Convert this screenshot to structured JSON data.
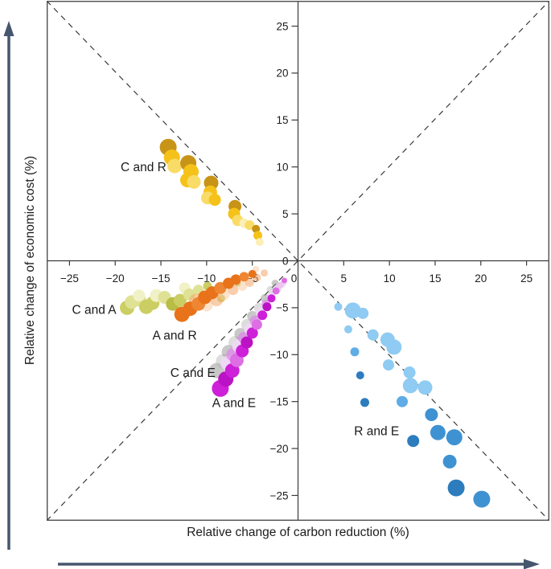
{
  "figure": {
    "x_axis_title": "Relative change of carbon reduction (%)",
    "y_axis_title": "Relative change of economic cost (%)"
  },
  "chart_data": {
    "type": "scatter",
    "title": "",
    "xlabel": "Relative change of carbon reduction (%)",
    "ylabel": "Relative change of economic cost (%)",
    "x_range": [
      -27.5,
      27.5
    ],
    "y_range": [
      -27.7,
      27.7
    ],
    "x_ticks": [
      -25,
      -20,
      -15,
      -10,
      -5,
      0,
      5,
      10,
      15,
      20,
      25
    ],
    "y_ticks": [
      -25,
      -20,
      -15,
      -10,
      -5,
      0,
      5,
      10,
      15,
      20,
      25
    ],
    "grid": false,
    "legend": "none",
    "reference_lines": [
      {
        "name": "diagonal y=x",
        "style": "dashed",
        "color": "#3a3a3a"
      },
      {
        "name": "diagonal y=-x",
        "style": "dashed",
        "color": "#3a3a3a"
      }
    ],
    "frame_color": "#4f4f4f",
    "axis_color": "#3a3a3a",
    "text_color": "#1c1c1c",
    "annotations": [
      {
        "label": "C and R",
        "x": -16.9,
        "y": 10.0
      },
      {
        "label": "C and A",
        "x": -22.3,
        "y": -5.2
      },
      {
        "label": "A and R",
        "x": -13.5,
        "y": -7.9
      },
      {
        "label": "C and E",
        "x": -11.5,
        "y": -11.9
      },
      {
        "label": "A and E",
        "x": -7.0,
        "y": -15.1
      },
      {
        "label": "R and E",
        "x": 8.6,
        "y": -18.1
      }
    ],
    "series": [
      {
        "name": "C and R",
        "palette": [
          "#C79418",
          "#F5C21A",
          "#F9DB67",
          "#FCEFB5"
        ],
        "points": [
          [
            -14.2,
            12.1,
            10.5,
            0
          ],
          [
            -13.8,
            11.0,
            10,
            1
          ],
          [
            -13.5,
            10.1,
            9,
            2
          ],
          [
            -12.0,
            10.4,
            10,
            0
          ],
          [
            -11.7,
            9.5,
            9.5,
            1
          ],
          [
            -12.1,
            8.6,
            9,
            1
          ],
          [
            -11.4,
            8.4,
            8.5,
            2
          ],
          [
            -9.5,
            8.3,
            9,
            0
          ],
          [
            -9.6,
            7.3,
            8.5,
            1
          ],
          [
            -9.9,
            6.7,
            8,
            2
          ],
          [
            -9.1,
            6.5,
            7.5,
            1
          ],
          [
            -6.9,
            5.8,
            8,
            0
          ],
          [
            -7.0,
            5.0,
            7.5,
            1
          ],
          [
            -6.6,
            4.3,
            7,
            2
          ],
          [
            -5.9,
            4.0,
            6,
            3
          ],
          [
            -5.3,
            3.8,
            6,
            2
          ],
          [
            -4.6,
            3.4,
            5,
            0
          ],
          [
            -4.4,
            2.7,
            5.5,
            1
          ],
          [
            -4.2,
            2.0,
            5,
            3
          ]
        ]
      },
      {
        "name": "C and A",
        "palette": [
          "#B9BC45",
          "#CBCE63",
          "#DFE195",
          "#F0F1C6"
        ],
        "points": [
          [
            -18.7,
            -5.0,
            9,
            1
          ],
          [
            -18.2,
            -4.4,
            8.5,
            2
          ],
          [
            -17.3,
            -4.2,
            8,
            2
          ],
          [
            -17.4,
            -3.7,
            7.5,
            3
          ],
          [
            -16.6,
            -4.9,
            9,
            1
          ],
          [
            -15.9,
            -4.5,
            8.5,
            1
          ],
          [
            -15.5,
            -3.7,
            8,
            3
          ],
          [
            -14.6,
            -3.9,
            8,
            2
          ],
          [
            -13.7,
            -4.6,
            8.5,
            0
          ],
          [
            -12.9,
            -4.2,
            8,
            1
          ],
          [
            -12.4,
            -2.9,
            7,
            3
          ],
          [
            -11.9,
            -3.6,
            7.5,
            2
          ],
          [
            -10.9,
            -3.1,
            6.5,
            2
          ],
          [
            -9.9,
            -2.7,
            5.5,
            1
          ],
          [
            -8.4,
            -4.0,
            5,
            1
          ],
          [
            -6.6,
            -2.4,
            4,
            1
          ]
        ]
      },
      {
        "name": "A and R",
        "palette": [
          "#E8731A",
          "#EF8633",
          "rgba(244,166,106,0.55)",
          "rgba(248,199,158,0.5)"
        ],
        "points": [
          [
            -11.2,
            -4.2,
            8,
            2
          ],
          [
            -10.0,
            -4.7,
            8,
            3
          ],
          [
            -8.9,
            -4.2,
            7.5,
            2
          ],
          [
            -8.1,
            -3.6,
            7,
            3
          ],
          [
            -7.1,
            -3.1,
            6.5,
            2
          ],
          [
            -6.1,
            -2.7,
            6,
            3
          ],
          [
            -5.3,
            -2.3,
            5.5,
            2
          ],
          [
            -4.5,
            -1.8,
            5,
            2
          ],
          [
            -3.7,
            -1.3,
            4.5,
            2
          ],
          [
            -4.6,
            -0.9,
            4,
            3
          ],
          [
            -12.7,
            -5.7,
            9.5,
            0
          ],
          [
            -11.8,
            -5.1,
            9,
            0
          ],
          [
            -10.9,
            -4.6,
            8.5,
            1
          ],
          [
            -10.2,
            -3.9,
            8.5,
            0
          ],
          [
            -9.4,
            -3.4,
            8,
            0
          ],
          [
            -8.5,
            -2.9,
            7.5,
            1
          ],
          [
            -7.6,
            -2.4,
            7,
            0
          ],
          [
            -6.8,
            -2.0,
            6.5,
            0
          ],
          [
            -5.9,
            -1.7,
            6,
            1
          ],
          [
            -5.0,
            -1.4,
            5,
            0
          ]
        ]
      },
      {
        "name": "C and E",
        "palette": [
          "rgba(145,145,145,0.5)",
          "rgba(175,175,175,0.42)",
          "rgba(240,216,246,0.9)",
          "rgba(222,138,232,0.75)"
        ],
        "points": [
          [
            -8.9,
            -11.7,
            9.5,
            0
          ],
          [
            -8.2,
            -10.7,
            9,
            1
          ],
          [
            -7.6,
            -9.7,
            8.5,
            0
          ],
          [
            -6.9,
            -8.7,
            8,
            1
          ],
          [
            -6.3,
            -7.8,
            7.5,
            0
          ],
          [
            -5.6,
            -6.8,
            7,
            1
          ],
          [
            -5.0,
            -5.9,
            6.5,
            0
          ],
          [
            -4.3,
            -5.0,
            6,
            1
          ],
          [
            -3.6,
            -4.0,
            5.5,
            0
          ],
          [
            -3.0,
            -3.1,
            5,
            1
          ],
          [
            -2.5,
            -2.4,
            4.5,
            0
          ],
          [
            -7.7,
            -10.9,
            9,
            2
          ],
          [
            -7.1,
            -10.0,
            8.5,
            3
          ],
          [
            -6.5,
            -9.1,
            8,
            2
          ],
          [
            -5.9,
            -8.2,
            7.5,
            3
          ],
          [
            -5.3,
            -7.3,
            7,
            2
          ],
          [
            -4.7,
            -6.4,
            6.5,
            3
          ],
          [
            -4.1,
            -5.5,
            6,
            2
          ],
          [
            -3.5,
            -4.6,
            5.5,
            3
          ],
          [
            -2.9,
            -3.8,
            5,
            2
          ],
          [
            -2.2,
            -3.0,
            4.5,
            2
          ],
          [
            -1.6,
            -2.4,
            4,
            2
          ]
        ]
      },
      {
        "name": "A and E",
        "palette": [
          "#CD20D8",
          "#BC12C5",
          "#DD6EE4",
          "#EFC3F2"
        ],
        "points": [
          [
            -8.5,
            -13.6,
            10.5,
            0
          ],
          [
            -7.9,
            -12.6,
            9.5,
            1
          ],
          [
            -7.2,
            -11.7,
            9,
            0
          ],
          [
            -6.7,
            -10.6,
            8.5,
            2
          ],
          [
            -6.1,
            -9.6,
            8,
            0
          ],
          [
            -5.6,
            -8.7,
            7.5,
            1
          ],
          [
            -5.0,
            -7.7,
            7,
            0
          ],
          [
            -4.5,
            -6.8,
            6.5,
            2
          ],
          [
            -3.9,
            -5.8,
            6,
            0
          ],
          [
            -3.4,
            -4.9,
            5.5,
            1
          ],
          [
            -2.9,
            -4.0,
            5,
            0
          ],
          [
            -2.4,
            -3.2,
            4.5,
            2
          ],
          [
            -1.9,
            -2.6,
            4,
            3
          ],
          [
            -1.5,
            -2.1,
            3.5,
            2
          ]
        ]
      },
      {
        "name": "R and E",
        "palette": [
          "#8FCBF2",
          "#5FACE6",
          "#3E92D2",
          "#2C7CBE"
        ],
        "points": [
          [
            4.4,
            -4.9,
            5,
            0
          ],
          [
            6.0,
            -5.3,
            10,
            0
          ],
          [
            7.1,
            -5.6,
            7,
            0
          ],
          [
            5.5,
            -7.3,
            5,
            0
          ],
          [
            8.2,
            -7.9,
            7,
            0
          ],
          [
            9.8,
            -8.4,
            9,
            0
          ],
          [
            10.5,
            -9.2,
            9.5,
            0
          ],
          [
            6.2,
            -9.7,
            5.5,
            1
          ],
          [
            9.9,
            -11.1,
            7,
            0
          ],
          [
            12.2,
            -11.9,
            7.5,
            0
          ],
          [
            12.3,
            -13.3,
            9.5,
            0
          ],
          [
            13.9,
            -13.5,
            9,
            0
          ],
          [
            6.8,
            -12.2,
            5,
            3
          ],
          [
            7.3,
            -15.1,
            5.5,
            3
          ],
          [
            11.4,
            -15.0,
            7,
            1
          ],
          [
            14.6,
            -16.4,
            8,
            2
          ],
          [
            15.3,
            -18.3,
            9.5,
            2
          ],
          [
            17.1,
            -18.8,
            10,
            2
          ],
          [
            12.6,
            -19.2,
            7.5,
            3
          ],
          [
            16.6,
            -21.4,
            8.5,
            2
          ],
          [
            17.3,
            -24.2,
            10.5,
            3
          ],
          [
            20.1,
            -25.4,
            10.5,
            2
          ]
        ]
      }
    ],
    "arrow_color": "#46566E"
  }
}
